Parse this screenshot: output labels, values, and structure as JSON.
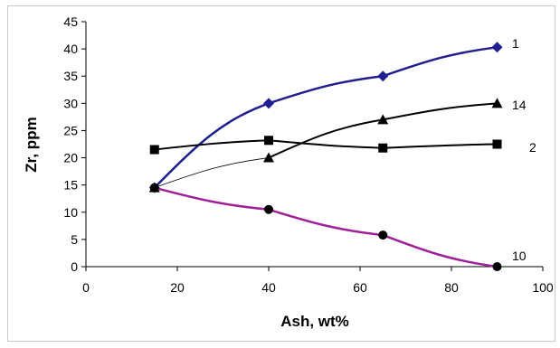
{
  "chart_data": {
    "type": "line",
    "xlabel": "Ash, wt%",
    "ylabel": "Zr, ppm",
    "xlim": [
      0,
      100
    ],
    "ylim": [
      0,
      45
    ],
    "xticks": [
      "0",
      "20",
      "40",
      "60",
      "80",
      "100"
    ],
    "yticks": [
      "0",
      "5",
      "10",
      "15",
      "20",
      "25",
      "30",
      "35",
      "40",
      "45"
    ],
    "grid": false,
    "legend": "none",
    "series": [
      {
        "label": "1",
        "x": [
          15,
          40,
          65,
          90
        ],
        "y": [
          14.5,
          30,
          35,
          40.3
        ],
        "color": "#1f1f8f",
        "marker": "diamond",
        "segment_widths": [
          2.5,
          2.5,
          2.5
        ]
      },
      {
        "label": "14",
        "x": [
          15,
          40,
          65,
          90
        ],
        "y": [
          14.5,
          20,
          27,
          30
        ],
        "color": "#000000",
        "marker": "triangle",
        "segment_widths": [
          0.8,
          2,
          2
        ]
      },
      {
        "label": "2",
        "x": [
          15,
          40,
          65,
          90
        ],
        "y": [
          21.5,
          23.2,
          21.8,
          22.5
        ],
        "color": "#000000",
        "marker": "square",
        "segment_widths": [
          2,
          2,
          2
        ]
      },
      {
        "label": "10",
        "x": [
          15,
          40,
          65,
          90
        ],
        "y": [
          14.5,
          10.5,
          5.8,
          0
        ],
        "color": "#a0209a",
        "marker": "circle",
        "segment_widths": [
          2.5,
          2.5,
          2.5
        ]
      }
    ]
  }
}
